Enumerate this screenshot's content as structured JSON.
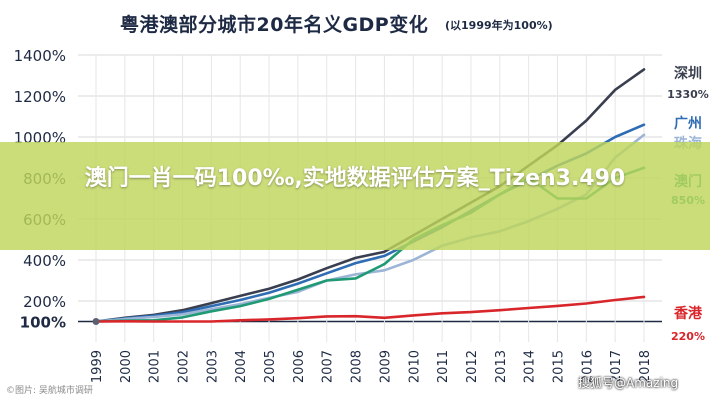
{
  "header": {
    "title": "粤港澳部分城市20年名义GDP变化",
    "subtitle": "(以1999年为100%)"
  },
  "banner": {
    "text": "澳门一肖一码100‰,实地数据评估方案_Tizen3.490"
  },
  "watermarks": {
    "left": "©图片: 吴航城市调研",
    "right": "搜狐号@Amazing"
  },
  "chart_data": {
    "type": "line",
    "title": "粤港澳部分城市20年名义GDP变化",
    "subtitle": "(以1999年为100%)",
    "x": [
      "1999",
      "2000",
      "2001",
      "2002",
      "2003",
      "2004",
      "2005",
      "2006",
      "2007",
      "2008",
      "2009",
      "2010",
      "2011",
      "2012",
      "2013",
      "2014",
      "2015",
      "2016",
      "2017",
      "2018"
    ],
    "ylim": [
      0,
      1400
    ],
    "yticks": [
      {
        "value": 100,
        "label": "100%"
      },
      {
        "value": 200,
        "label": "200%"
      },
      {
        "value": 400,
        "label": "400%"
      },
      {
        "value": 600,
        "label": "600%"
      },
      {
        "value": 800,
        "label": "800%"
      },
      {
        "value": 1000,
        "label": "1000%"
      },
      {
        "value": 1200,
        "label": "1200%"
      },
      {
        "value": 1400,
        "label": "1400%"
      }
    ],
    "grid": true,
    "series": [
      {
        "name": "深圳",
        "end_label": "1330%",
        "color": "#3a3f4f",
        "values": [
          100,
          118,
          132,
          155,
          190,
          225,
          260,
          305,
          360,
          410,
          440,
          520,
          600,
          680,
          760,
          860,
          960,
          1080,
          1230,
          1330
        ]
      },
      {
        "name": "广州",
        "end_label": "",
        "color": "#2e6db4",
        "values": [
          100,
          115,
          128,
          145,
          175,
          205,
          240,
          285,
          335,
          385,
          420,
          490,
          560,
          640,
          720,
          790,
          860,
          920,
          1000,
          1060
        ]
      },
      {
        "name": "珠海",
        "end_label": "",
        "color": "#9cb4d6",
        "values": [
          100,
          112,
          122,
          135,
          160,
          185,
          215,
          245,
          300,
          330,
          350,
          400,
          470,
          510,
          540,
          590,
          650,
          720,
          900,
          1010
        ]
      },
      {
        "name": "澳门",
        "end_label": "850%",
        "color": "#1f9a74",
        "values": [
          100,
          104,
          106,
          120,
          150,
          175,
          210,
          255,
          300,
          310,
          380,
          500,
          570,
          630,
          720,
          800,
          700,
          700,
          800,
          850
        ]
      },
      {
        "name": "香港",
        "end_label": "220%",
        "color": "#d8262b",
        "values": [
          100,
          101,
          100,
          100,
          100,
          106,
          110,
          116,
          125,
          126,
          118,
          130,
          140,
          146,
          155,
          166,
          176,
          188,
          205,
          220
        ]
      }
    ]
  }
}
